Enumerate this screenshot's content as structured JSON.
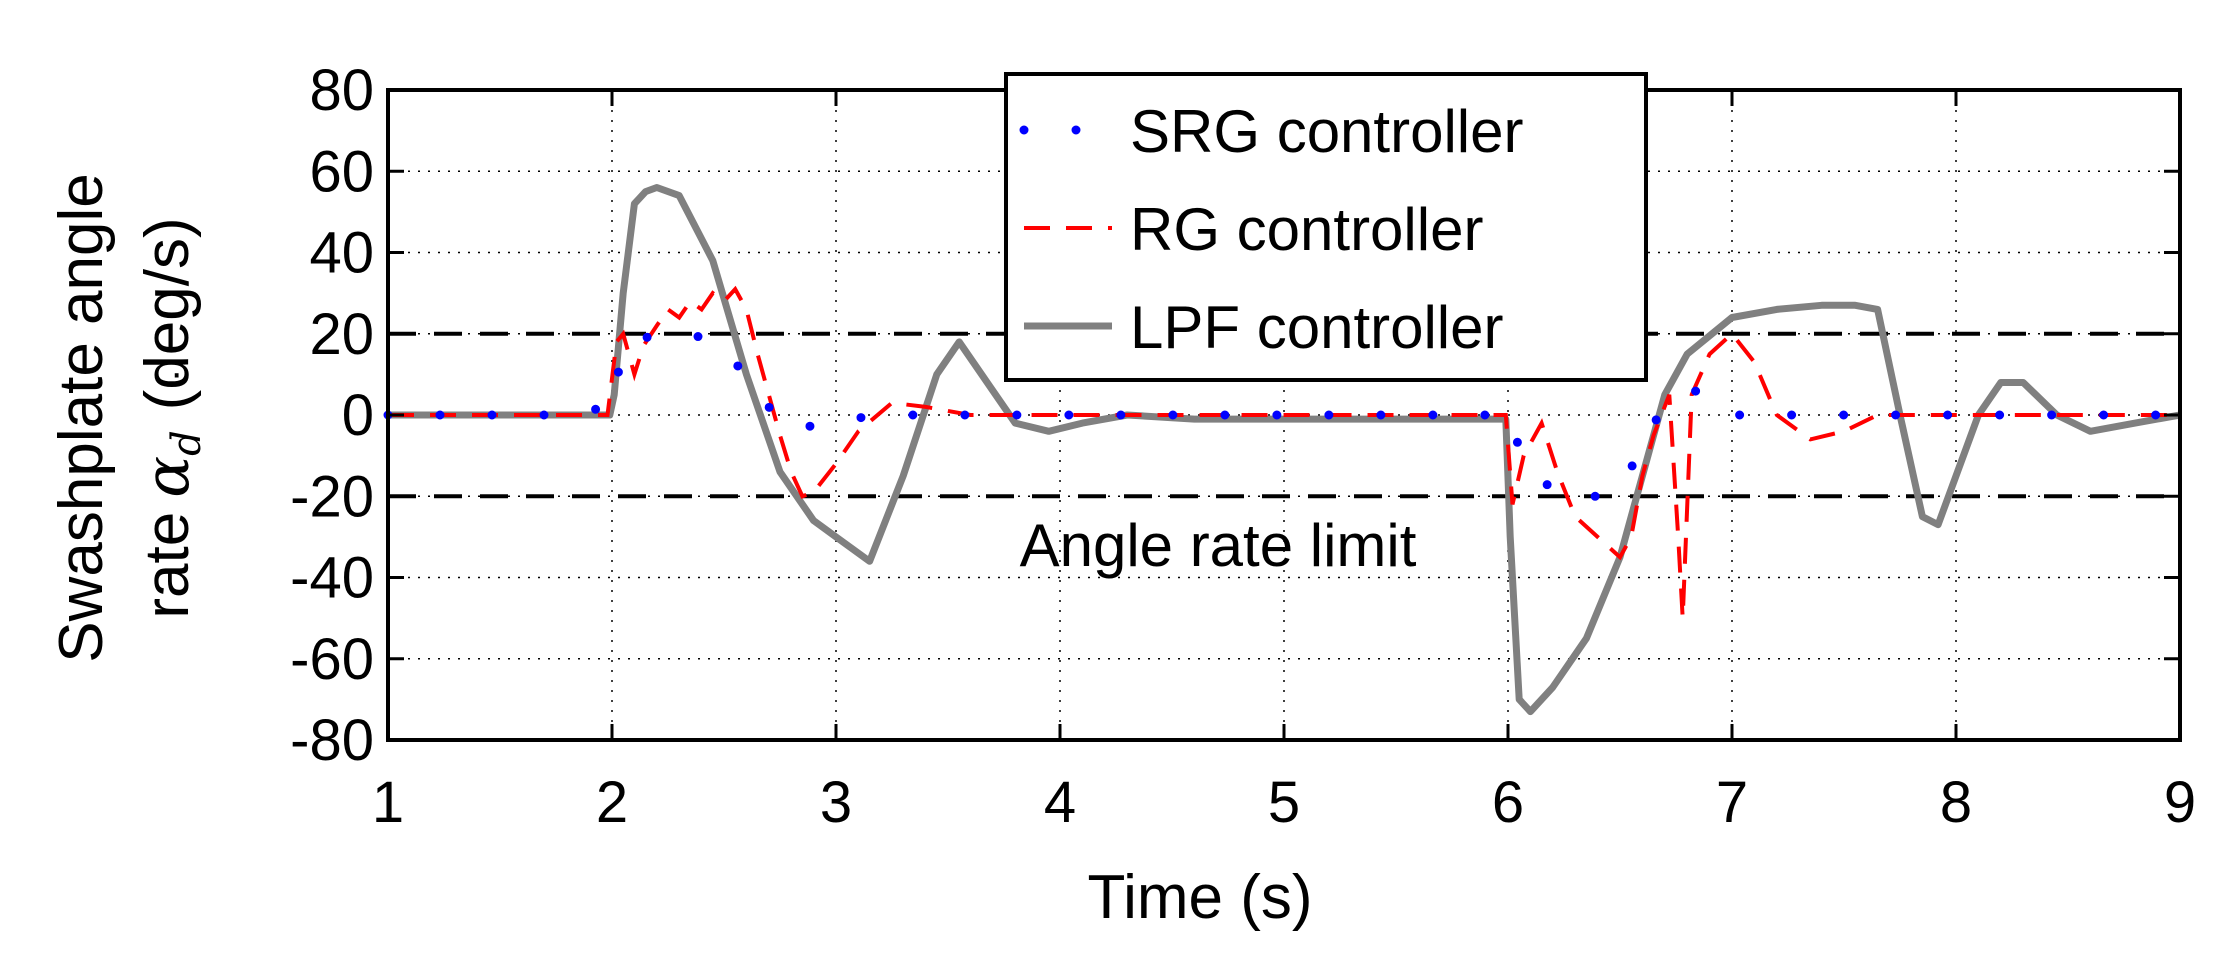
{
  "chart_data": {
    "type": "line",
    "xlabel": "Time (s)",
    "ylabel_line1": "Swashplate angle",
    "ylabel_line2": "rate",
    "ylabel_symbol": "α",
    "ylabel_subscript": "d",
    "ylabel_units": "(deg/s)",
    "xlim": [
      1,
      9
    ],
    "ylim": [
      -80,
      80
    ],
    "xticks": [
      1,
      2,
      3,
      4,
      5,
      6,
      7,
      8,
      9
    ],
    "yticks": [
      80,
      60,
      40,
      20,
      0,
      -20,
      -40,
      -60,
      -80
    ],
    "grid": true,
    "legend_location": "top-center",
    "annotation": "Angle rate limit",
    "limits": [
      20,
      -20
    ],
    "series": [
      {
        "name": "SRG controller",
        "style": "dotted",
        "color": "#0000ff",
        "x": [
          1.0,
          1.35,
          1.75,
          2.0,
          2.05,
          2.2,
          2.35,
          2.5,
          2.65,
          2.8,
          3.0,
          3.3,
          3.6,
          4.0,
          4.4,
          4.75,
          5.1,
          5.45,
          5.8,
          6.0,
          6.05,
          6.2,
          6.35,
          6.45,
          6.55,
          6.65,
          6.75,
          6.85,
          7.0,
          7.4,
          7.7,
          8.05,
          8.4,
          8.8,
          9.0
        ],
        "y": [
          0,
          0,
          0,
          2,
          17,
          20,
          20,
          17,
          5,
          -4,
          -1,
          0,
          0,
          0,
          0,
          0,
          0,
          0,
          0,
          0,
          -8,
          -19,
          -20,
          -20,
          -13,
          -2,
          5,
          6,
          0,
          0,
          0,
          0,
          0,
          0,
          0
        ]
      },
      {
        "name": "RG controller",
        "style": "dashed",
        "color": "#ff0000",
        "x": [
          1.0,
          1.5,
          1.98,
          2.02,
          2.05,
          2.1,
          2.14,
          2.2,
          2.25,
          2.3,
          2.35,
          2.4,
          2.45,
          2.5,
          2.55,
          2.6,
          2.65,
          2.7,
          2.75,
          2.8,
          2.85,
          2.9,
          3.0,
          3.1,
          3.25,
          3.4,
          3.6,
          4.0,
          5.0,
          5.99,
          6.02,
          6.07,
          6.15,
          6.22,
          6.3,
          6.4,
          6.5,
          6.55,
          6.6,
          6.65,
          6.72,
          6.76,
          6.78,
          6.82,
          6.9,
          7.0,
          7.1,
          7.2,
          7.35,
          7.5,
          7.65,
          7.8,
          8.0,
          8.2,
          8.5,
          8.8,
          9.0
        ],
        "y": [
          0,
          0,
          0,
          18,
          20,
          10,
          17,
          22,
          26,
          24,
          28,
          26,
          30,
          28,
          31,
          26,
          15,
          5,
          -5,
          -14,
          -20,
          -19,
          -12,
          -4,
          3,
          2,
          0,
          0,
          0,
          0,
          -22,
          -10,
          -2,
          -14,
          -25,
          -30,
          -35,
          -30,
          -15,
          -5,
          5,
          -30,
          -50,
          5,
          15,
          20,
          13,
          0,
          -6,
          -4,
          0,
          0,
          0,
          0,
          0,
          0,
          0
        ]
      },
      {
        "name": "LPF controller",
        "style": "solid",
        "color": "#808080",
        "x": [
          1.0,
          1.99,
          2.01,
          2.05,
          2.1,
          2.15,
          2.2,
          2.3,
          2.45,
          2.6,
          2.75,
          2.9,
          3.0,
          3.15,
          3.3,
          3.45,
          3.55,
          3.65,
          3.8,
          3.95,
          4.1,
          4.3,
          4.6,
          5.0,
          5.5,
          5.99,
          6.01,
          6.05,
          6.1,
          6.2,
          6.35,
          6.5,
          6.6,
          6.7,
          6.8,
          7.0,
          7.2,
          7.4,
          7.55,
          7.65,
          7.75,
          7.85,
          7.92,
          8.0,
          8.1,
          8.2,
          8.3,
          8.45,
          8.6,
          8.8,
          9.0
        ],
        "y": [
          0,
          0,
          5,
          30,
          52,
          55,
          56,
          54,
          38,
          10,
          -14,
          -26,
          -30,
          -36,
          -15,
          10,
          18,
          10,
          -2,
          -4,
          -2,
          0,
          -1,
          -1,
          -1,
          -1,
          -30,
          -70,
          -73,
          -67,
          -55,
          -35,
          -15,
          5,
          15,
          24,
          26,
          27,
          27,
          26,
          0,
          -25,
          -27,
          -15,
          0,
          8,
          8,
          0,
          -4,
          -2,
          0
        ]
      }
    ]
  }
}
